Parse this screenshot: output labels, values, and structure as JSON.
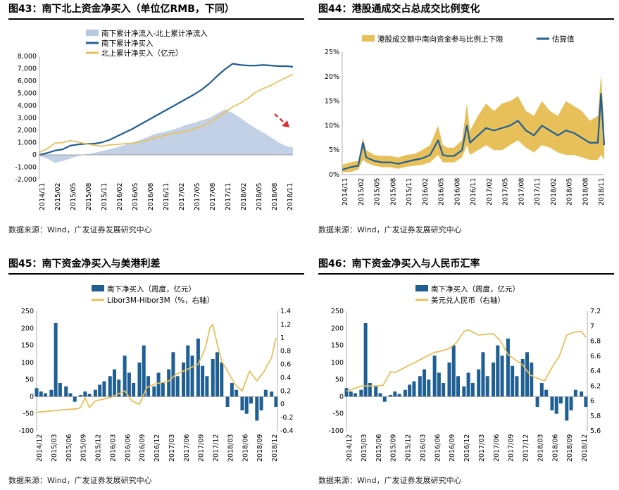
{
  "panels": [
    {
      "title": "图43：南下北上资金净买入（单位亿RMB，下同）",
      "source": "数据来源：Wind，广发证券发展研究中心"
    },
    {
      "title": "图44：港股通成交占总成交比例变化",
      "source": "数据来源：Wind，广发证券发展研究中心"
    },
    {
      "title": "图45：南下资金净买入与美港利差",
      "source": "数据来源：Wind，广发证券发展研究中心"
    },
    {
      "title": "图46：南下资金净买入与人民币汇率",
      "source": "数据来源：Wind，广发证券发展研究中心"
    }
  ],
  "chart_data": [
    {
      "type": "area",
      "title": "图43：南下北上资金净买入（单位亿RMB，下同）",
      "legend_position": "top-left",
      "x_ticks": [
        "2014/11",
        "2015/02",
        "2015/05",
        "2015/08",
        "2015/11",
        "2016/02",
        "2016/05",
        "2016/08",
        "2016/11",
        "2017/02",
        "2017/05",
        "2017/08",
        "2017/11",
        "2018/02",
        "2018/05",
        "2018/08",
        "2018/11"
      ],
      "y_ticks": [
        "-2,000",
        "-1,000",
        "0",
        "1,000",
        "2,000",
        "3,000",
        "4,000",
        "5,000",
        "6,000",
        "7,000",
        "8,000"
      ],
      "ylim": [
        -2000,
        8000
      ],
      "x_index_range": [
        0,
        16
      ],
      "series": [
        {
          "name": "南下累计净流入-北上累计净流入",
          "kind": "area",
          "color": "#b7c9e2",
          "x": [
            0,
            0.5,
            1,
            1.5,
            2,
            2.5,
            3,
            3.5,
            4,
            4.5,
            5,
            5.5,
            6,
            6.5,
            7,
            7.5,
            8,
            8.5,
            9,
            9.5,
            10,
            10.5,
            11,
            11.5,
            12,
            12.5,
            13,
            13.5,
            14,
            14.5,
            15,
            15.5,
            16,
            16.4
          ],
          "values": [
            -100,
            -300,
            -650,
            -500,
            -300,
            -100,
            50,
            150,
            300,
            450,
            600,
            800,
            1000,
            1200,
            1450,
            1700,
            1850,
            2000,
            2200,
            2450,
            2600,
            2800,
            3000,
            3350,
            3700,
            3400,
            3000,
            2550,
            2150,
            1800,
            1400,
            1000,
            700,
            600
          ]
        },
        {
          "name": "南下累计净买入",
          "kind": "line",
          "color": "#1f5f94",
          "x": [
            0,
            0.5,
            1,
            1.5,
            2,
            2.5,
            3,
            3.5,
            4,
            4.5,
            5,
            5.5,
            6,
            6.5,
            7,
            7.5,
            8,
            8.5,
            9,
            9.5,
            10,
            10.5,
            11,
            11.5,
            12,
            12.5,
            13,
            13.5,
            14,
            14.5,
            15,
            15.5,
            16,
            16.4
          ],
          "values": [
            0,
            150,
            350,
            450,
            750,
            850,
            900,
            900,
            1000,
            1200,
            1500,
            1800,
            2100,
            2450,
            2800,
            3150,
            3500,
            3850,
            4200,
            4550,
            4900,
            5300,
            5800,
            6400,
            6950,
            7400,
            7300,
            7250,
            7250,
            7300,
            7250,
            7200,
            7200,
            7150
          ]
        },
        {
          "name": "北上累计净买入（亿元）",
          "kind": "line",
          "color": "#e8c05a",
          "x": [
            0,
            0.5,
            1,
            1.5,
            2,
            2.5,
            3,
            3.5,
            4,
            4.5,
            5,
            5.5,
            6,
            6.5,
            7,
            7.5,
            8,
            8.5,
            9,
            9.5,
            10,
            10.5,
            11,
            11.5,
            12,
            12.5,
            13,
            13.5,
            14,
            14.5,
            15,
            15.5,
            16,
            16.4
          ],
          "values": [
            200,
            500,
            950,
            1000,
            1150,
            1050,
            900,
            800,
            700,
            800,
            850,
            900,
            950,
            1050,
            1200,
            1400,
            1550,
            1700,
            1800,
            1950,
            2100,
            2300,
            2650,
            3000,
            3450,
            3900,
            4200,
            4600,
            5100,
            5400,
            5650,
            6000,
            6300,
            6550
          ]
        }
      ],
      "annotation": "red-dashed-arrow"
    },
    {
      "type": "line",
      "title": "图44：港股通成交占总成交比例变化",
      "legend_position": "top",
      "x_ticks": [
        "2014/11",
        "2015/02",
        "2015/05",
        "2015/08",
        "2015/11",
        "2016/02",
        "2016/05",
        "2016/08",
        "2016/11",
        "2017/02",
        "2017/05",
        "2017/08",
        "2017/11",
        "2018/02",
        "2018/05",
        "2018/08",
        "2018/11"
      ],
      "y_ticks": [
        "0%",
        "5%",
        "10%",
        "15%",
        "20%",
        "25%"
      ],
      "ylim": [
        0,
        25
      ],
      "series": [
        {
          "name": "港股成交额中南向资金参与比例上下限",
          "kind": "band",
          "color": "#e8c05a",
          "x": [
            0,
            0.5,
            1,
            1.3,
            1.5,
            2,
            2.5,
            3,
            3.5,
            4,
            4.5,
            5,
            5.5,
            6,
            6.3,
            6.6,
            7,
            7.5,
            7.8,
            8,
            8.5,
            9,
            9.5,
            10,
            10.5,
            11,
            11.5,
            12,
            12.5,
            13,
            13.5,
            14,
            14.5,
            15,
            15.5,
            16,
            16.2,
            16.4
          ],
          "upper": [
            2,
            2.5,
            2.8,
            7.5,
            5,
            4,
            3.8,
            3.8,
            3.5,
            4,
            4.2,
            5,
            6,
            10,
            6,
            5.5,
            5.5,
            7,
            14.5,
            9,
            12,
            14.5,
            13,
            14.5,
            15,
            16,
            13,
            12,
            15,
            13,
            12,
            15,
            14,
            13,
            11,
            12,
            20.5,
            10
          ],
          "lower": [
            0.5,
            0.5,
            1,
            3,
            2.5,
            1.8,
            1.5,
            1.5,
            1.2,
            1.6,
            1.8,
            2,
            2.5,
            4,
            2.5,
            2.5,
            2.5,
            3.5,
            6,
            4,
            5,
            6,
            5,
            5,
            6,
            7,
            5.5,
            4.5,
            6,
            5.5,
            4.5,
            4,
            4,
            3.5,
            3,
            3,
            4,
            3
          ]
        },
        {
          "name": "估算值",
          "kind": "line",
          "color": "#1f5f94",
          "x": [
            0,
            0.5,
            1,
            1.3,
            1.5,
            2,
            2.5,
            3,
            3.5,
            4,
            4.5,
            5,
            5.5,
            6,
            6.3,
            6.6,
            7,
            7.5,
            7.8,
            8,
            8.5,
            9,
            9.5,
            10,
            10.5,
            11,
            11.5,
            12,
            12.5,
            13,
            13.5,
            14,
            14.5,
            15,
            15.5,
            16,
            16.2,
            16.4
          ],
          "values": [
            1,
            1.5,
            1.8,
            6.5,
            3.5,
            2.8,
            2.5,
            2.5,
            2.2,
            2.6,
            3,
            3.3,
            4,
            7,
            4,
            3.8,
            3.8,
            5,
            10,
            6.5,
            8,
            9.5,
            9,
            9.5,
            10,
            11,
            9,
            8,
            10,
            9,
            8,
            9,
            8.5,
            7.5,
            6.5,
            6.5,
            16.5,
            6
          ]
        }
      ]
    },
    {
      "type": "bar",
      "title": "图45：南下资金净买入与美港利差",
      "legend_position": "top",
      "x_ticks": [
        "2014/12",
        "2015/03",
        "2015/06",
        "2015/09",
        "2015/12",
        "2016/03",
        "2016/06",
        "2016/09",
        "2016/12",
        "2017/03",
        "2017/06",
        "2017/09",
        "2017/12",
        "2018/03",
        "2018/06",
        "2018/09",
        "2018/12"
      ],
      "y_ticks_left": [
        "-100",
        "-50",
        "0",
        "50",
        "100",
        "150",
        "200",
        "250"
      ],
      "y_ticks_right": [
        "-0.4",
        "-0.2",
        "0",
        "0.2",
        "0.4",
        "0.6",
        "0.8",
        "1",
        "1.2",
        "1.4"
      ],
      "ylim": [
        -100,
        250
      ],
      "ylim_right": [
        -0.4,
        1.4
      ],
      "series": [
        {
          "name": "南下净买入（周度，亿元）",
          "kind": "bar",
          "color": "#1f5f94",
          "axis": "left",
          "x": [
            0,
            0.3,
            0.6,
            1,
            1.3,
            1.6,
            2,
            2.3,
            2.6,
            3,
            3.3,
            3.6,
            4,
            4.3,
            4.6,
            5,
            5.3,
            5.6,
            6,
            6.3,
            6.6,
            7,
            7.3,
            7.6,
            8,
            8.3,
            8.6,
            9,
            9.3,
            9.6,
            10,
            10.3,
            10.6,
            11,
            11.3,
            11.6,
            12,
            12.3,
            12.6,
            13,
            13.3,
            13.6,
            14,
            14.3,
            14.6,
            15,
            15.3,
            15.6,
            16,
            16.3
          ],
          "values": [
            25,
            15,
            10,
            20,
            215,
            40,
            30,
            10,
            -15,
            5,
            15,
            8,
            20,
            35,
            45,
            60,
            80,
            50,
            120,
            70,
            40,
            100,
            150,
            60,
            30,
            70,
            40,
            80,
            130,
            60,
            100,
            150,
            120,
            170,
            90,
            60,
            110,
            130,
            100,
            -30,
            40,
            20,
            -40,
            -50,
            -20,
            -70,
            -40,
            20,
            15,
            -30
          ]
        },
        {
          "name": "Libor3M-Hibor3M（%，右轴）",
          "kind": "line",
          "color": "#e8c05a",
          "axis": "right",
          "x": [
            0,
            1,
            2,
            2.7,
            3,
            3.3,
            3.6,
            4,
            5,
            6,
            6.5,
            7,
            7.5,
            8,
            9,
            9.5,
            10,
            10.5,
            11,
            11.5,
            11.8,
            12,
            12.3,
            12.6,
            13,
            13.5,
            14,
            14.5,
            15,
            15.5,
            16,
            16.3
          ],
          "values": [
            -0.12,
            -0.1,
            -0.08,
            -0.07,
            -0.05,
            0.1,
            -0.05,
            0.05,
            0.1,
            0.2,
            0.05,
            0,
            0.25,
            0.3,
            0.35,
            0.45,
            0.5,
            0.55,
            0.6,
            0.85,
            1.15,
            1.2,
            0.9,
            0.65,
            0.5,
            0.3,
            0.2,
            0.5,
            0.35,
            0.5,
            0.7,
            1.0
          ]
        }
      ]
    },
    {
      "type": "bar",
      "title": "图46：南下资金净买入与人民币汇率",
      "legend_position": "top",
      "x_ticks": [
        "2014/12",
        "2015/03",
        "2015/06",
        "2015/09",
        "2015/12",
        "2016/03",
        "2016/06",
        "2016/09",
        "2016/12",
        "2017/03",
        "2017/06",
        "2017/09",
        "2017/12",
        "2018/03",
        "2018/06",
        "2018/09",
        "2018/12"
      ],
      "y_ticks_left": [
        "-100",
        "-50",
        "0",
        "50",
        "100",
        "150",
        "200",
        "250"
      ],
      "y_ticks_right": [
        "5.6",
        "5.8",
        "6",
        "6.2",
        "6.4",
        "6.6",
        "6.8",
        "7",
        "7.2"
      ],
      "ylim": [
        -100,
        250
      ],
      "ylim_right": [
        5.6,
        7.2
      ],
      "series": [
        {
          "name": "南下净买入（周度，亿元）",
          "kind": "bar",
          "color": "#1f5f94",
          "axis": "left",
          "x": [
            0,
            0.3,
            0.6,
            1,
            1.3,
            1.6,
            2,
            2.3,
            2.6,
            3,
            3.3,
            3.6,
            4,
            4.3,
            4.6,
            5,
            5.3,
            5.6,
            6,
            6.3,
            6.6,
            7,
            7.3,
            7.6,
            8,
            8.3,
            8.6,
            9,
            9.3,
            9.6,
            10,
            10.3,
            10.6,
            11,
            11.3,
            11.6,
            12,
            12.3,
            12.6,
            13,
            13.3,
            13.6,
            14,
            14.3,
            14.6,
            15,
            15.3,
            15.6,
            16,
            16.3
          ],
          "values": [
            25,
            15,
            10,
            20,
            215,
            40,
            30,
            10,
            -15,
            5,
            15,
            8,
            20,
            35,
            45,
            60,
            80,
            50,
            120,
            70,
            40,
            100,
            150,
            60,
            30,
            70,
            40,
            80,
            130,
            60,
            100,
            150,
            120,
            170,
            90,
            60,
            110,
            130,
            100,
            -30,
            40,
            20,
            -40,
            -50,
            -20,
            -70,
            -40,
            20,
            15,
            -30
          ]
        },
        {
          "name": "美元兑人民币（右轴）",
          "kind": "line",
          "color": "#e8c05a",
          "axis": "right",
          "x": [
            0,
            1,
            2,
            2.5,
            3,
            3.3,
            4,
            5,
            6,
            6.5,
            7,
            7.5,
            8,
            8.3,
            9,
            10,
            10.5,
            11,
            11.5,
            12,
            12.5,
            13,
            13.5,
            14,
            14.5,
            15,
            15.5,
            16,
            16.3
          ],
          "values": [
            6.13,
            6.2,
            6.2,
            6.21,
            6.39,
            6.38,
            6.45,
            6.55,
            6.65,
            6.67,
            6.7,
            6.78,
            6.93,
            6.95,
            6.88,
            6.9,
            6.8,
            6.62,
            6.55,
            6.48,
            6.35,
            6.3,
            6.27,
            6.45,
            6.6,
            6.88,
            6.92,
            6.93,
            6.85
          ]
        }
      ]
    }
  ]
}
